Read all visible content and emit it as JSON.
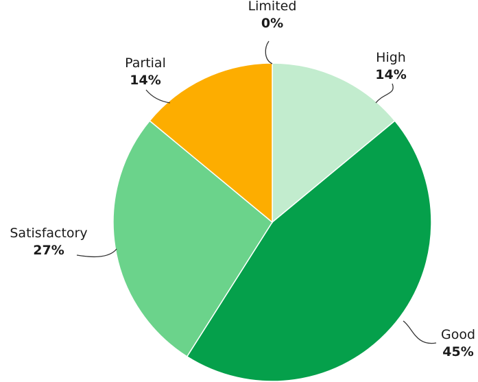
{
  "chart_data": {
    "type": "pie",
    "title": "",
    "slices": [
      {
        "label": "High",
        "value": 14,
        "value_label": "14%",
        "color": "#c2ecce"
      },
      {
        "label": "Good",
        "value": 45,
        "value_label": "45%",
        "color": "#05a04b"
      },
      {
        "label": "Satisfactory",
        "value": 27,
        "value_label": "27%",
        "color": "#6bd38b"
      },
      {
        "label": "Partial",
        "value": 14,
        "value_label": "14%",
        "color": "#fdad00"
      },
      {
        "label": "Limited",
        "value": 0,
        "value_label": "0%",
        "color": "#e03a2f"
      }
    ],
    "direction": "clockwise",
    "start": "top",
    "legend": "none"
  }
}
